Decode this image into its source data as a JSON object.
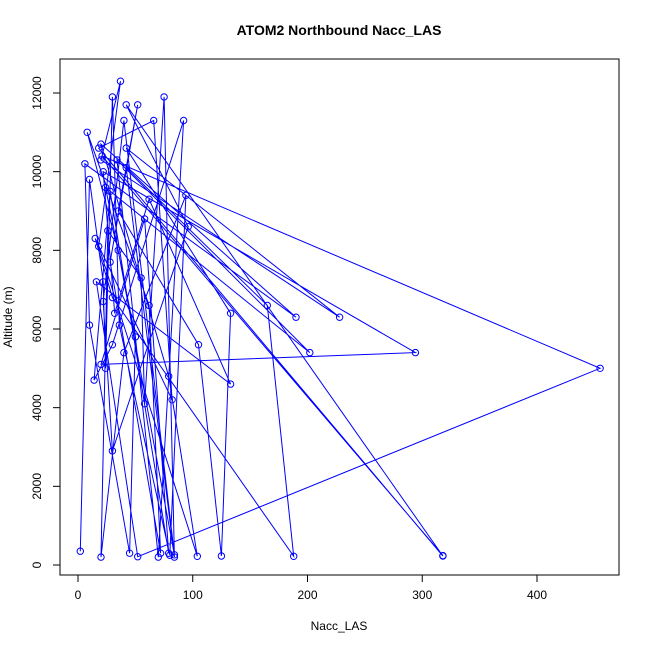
{
  "chart_data": {
    "type": "line",
    "title": "ATOM2 Northbound Nacc_LAS",
    "xlabel": "Nacc_LAS",
    "ylabel": "Altitude (m)",
    "xlim": [
      0,
      470
    ],
    "ylim": [
      0,
      12600
    ],
    "xticks": [
      0,
      100,
      200,
      300,
      400
    ],
    "yticks": [
      0,
      2000,
      4000,
      6000,
      8000,
      10000,
      12000
    ],
    "grid": false,
    "legend": "none",
    "series_color": "#0000ff",
    "marker": "open-circle",
    "series": [
      {
        "values": [
          {
            "x": 2,
            "y": 350
          },
          {
            "x": 10,
            "y": 9800
          },
          {
            "x": 22,
            "y": 7200
          },
          {
            "x": 24,
            "y": 5000
          },
          {
            "x": 30,
            "y": 11900
          },
          {
            "x": 36,
            "y": 6100
          },
          {
            "x": 80,
            "y": 250
          },
          {
            "x": 94,
            "y": 9400
          },
          {
            "x": 40,
            "y": 5400
          },
          {
            "x": 20,
            "y": 200
          },
          {
            "x": 26,
            "y": 8500
          },
          {
            "x": 55,
            "y": 7300
          },
          {
            "x": 58,
            "y": 4100
          },
          {
            "x": 75,
            "y": 11900
          },
          {
            "x": 84,
            "y": 200
          },
          {
            "x": 42,
            "y": 10100
          },
          {
            "x": 165,
            "y": 6600
          },
          {
            "x": 188,
            "y": 220
          },
          {
            "x": 30,
            "y": 6800
          },
          {
            "x": 15,
            "y": 8300
          },
          {
            "x": 82,
            "y": 4200
          },
          {
            "x": 66,
            "y": 11300
          },
          {
            "x": 18,
            "y": 10600
          },
          {
            "x": 318,
            "y": 230
          },
          {
            "x": 42,
            "y": 11700
          },
          {
            "x": 96,
            "y": 8600
          },
          {
            "x": 30,
            "y": 2900
          },
          {
            "x": 22,
            "y": 6700
          },
          {
            "x": 40,
            "y": 11300
          },
          {
            "x": 84,
            "y": 260
          },
          {
            "x": 35,
            "y": 8000
          },
          {
            "x": 8,
            "y": 11000
          },
          {
            "x": 62,
            "y": 6600
          },
          {
            "x": 72,
            "y": 300
          },
          {
            "x": 28,
            "y": 7700
          },
          {
            "x": 52,
            "y": 11700
          },
          {
            "x": 35,
            "y": 9000
          },
          {
            "x": 105,
            "y": 5600
          },
          {
            "x": 125,
            "y": 230
          },
          {
            "x": 133,
            "y": 6400
          },
          {
            "x": 42,
            "y": 10600
          },
          {
            "x": 228,
            "y": 6300
          },
          {
            "x": 20,
            "y": 10300
          },
          {
            "x": 37,
            "y": 12300
          },
          {
            "x": 18,
            "y": 8100
          },
          {
            "x": 104,
            "y": 220
          },
          {
            "x": 79,
            "y": 4800
          },
          {
            "x": 20,
            "y": 10700
          },
          {
            "x": 190,
            "y": 6300
          },
          {
            "x": 6,
            "y": 10200
          },
          {
            "x": 10,
            "y": 6100
          },
          {
            "x": 45,
            "y": 300
          },
          {
            "x": 50,
            "y": 5800
          },
          {
            "x": 24,
            "y": 9600
          },
          {
            "x": 202,
            "y": 5400
          },
          {
            "x": 34,
            "y": 10300
          },
          {
            "x": 70,
            "y": 200
          },
          {
            "x": 92,
            "y": 11300
          },
          {
            "x": 30,
            "y": 5600
          },
          {
            "x": 14,
            "y": 4700
          },
          {
            "x": 28,
            "y": 9500
          },
          {
            "x": 79,
            "y": 300
          },
          {
            "x": 58,
            "y": 8800
          },
          {
            "x": 20,
            "y": 5100
          },
          {
            "x": 294,
            "y": 5400
          },
          {
            "x": 22,
            "y": 10000
          },
          {
            "x": 32,
            "y": 6400
          },
          {
            "x": 62,
            "y": 9300
          },
          {
            "x": 133,
            "y": 4600
          },
          {
            "x": 16,
            "y": 7200
          },
          {
            "x": 52,
            "y": 210
          },
          {
            "x": 455,
            "y": 5000
          },
          {
            "x": 21,
            "y": 10400
          },
          {
            "x": 318,
            "y": 240
          }
        ]
      }
    ]
  }
}
